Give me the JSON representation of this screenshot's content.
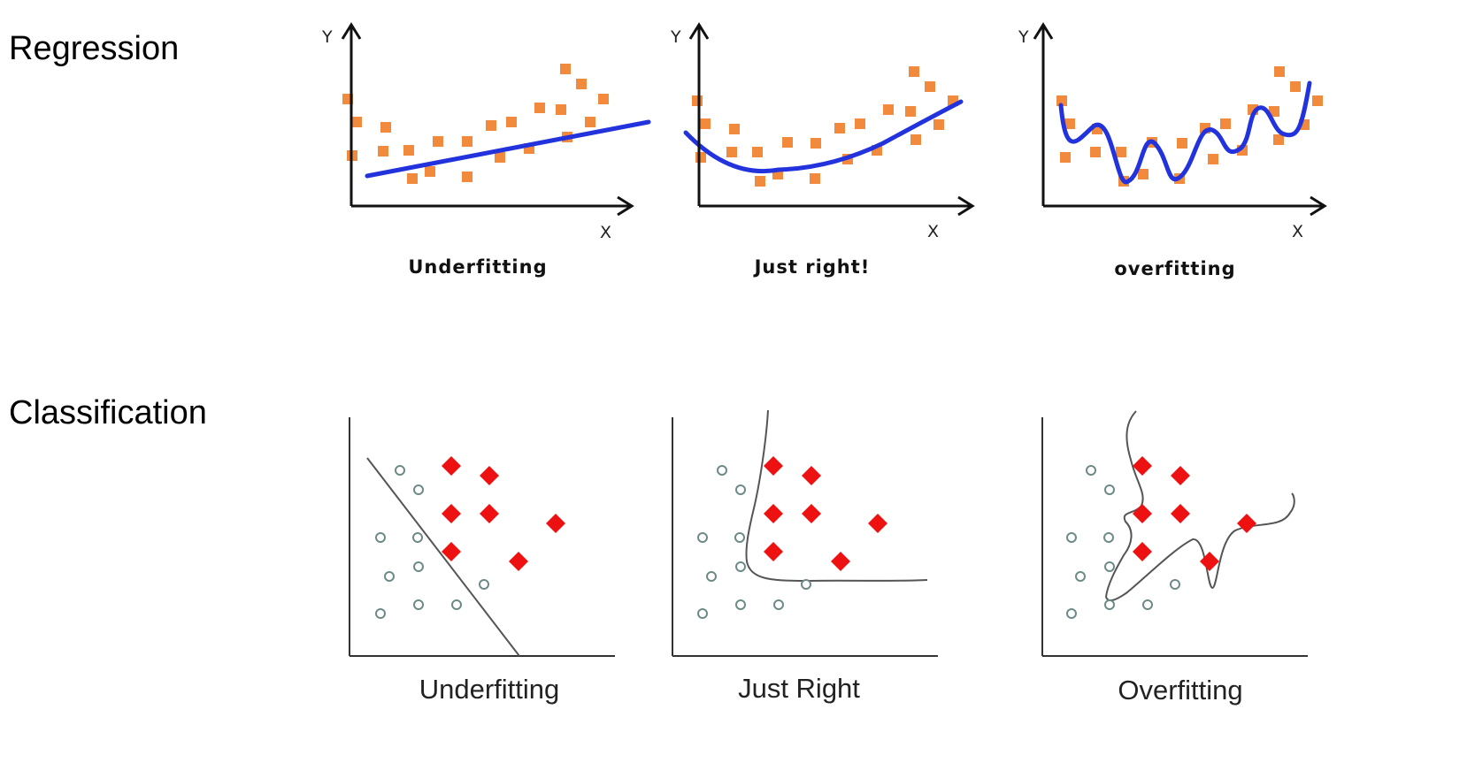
{
  "colors": {
    "fit_line": "#2233dd",
    "data_square": "#f28a3e",
    "diamond": "#ee1111",
    "circle_stroke": "#6d8a88",
    "boundary": "#555555",
    "axis": "#111111"
  },
  "regression": {
    "title": "Regression",
    "axis_x": "X",
    "axis_y": "Y",
    "panels": [
      {
        "caption": "Underfitting"
      },
      {
        "caption": "Just right!"
      },
      {
        "caption": "overfitting"
      }
    ]
  },
  "classification": {
    "title": "Classification",
    "panels": [
      {
        "caption": "Underfitting"
      },
      {
        "caption": "Just Right"
      },
      {
        "caption": "Overfitting"
      }
    ]
  }
}
